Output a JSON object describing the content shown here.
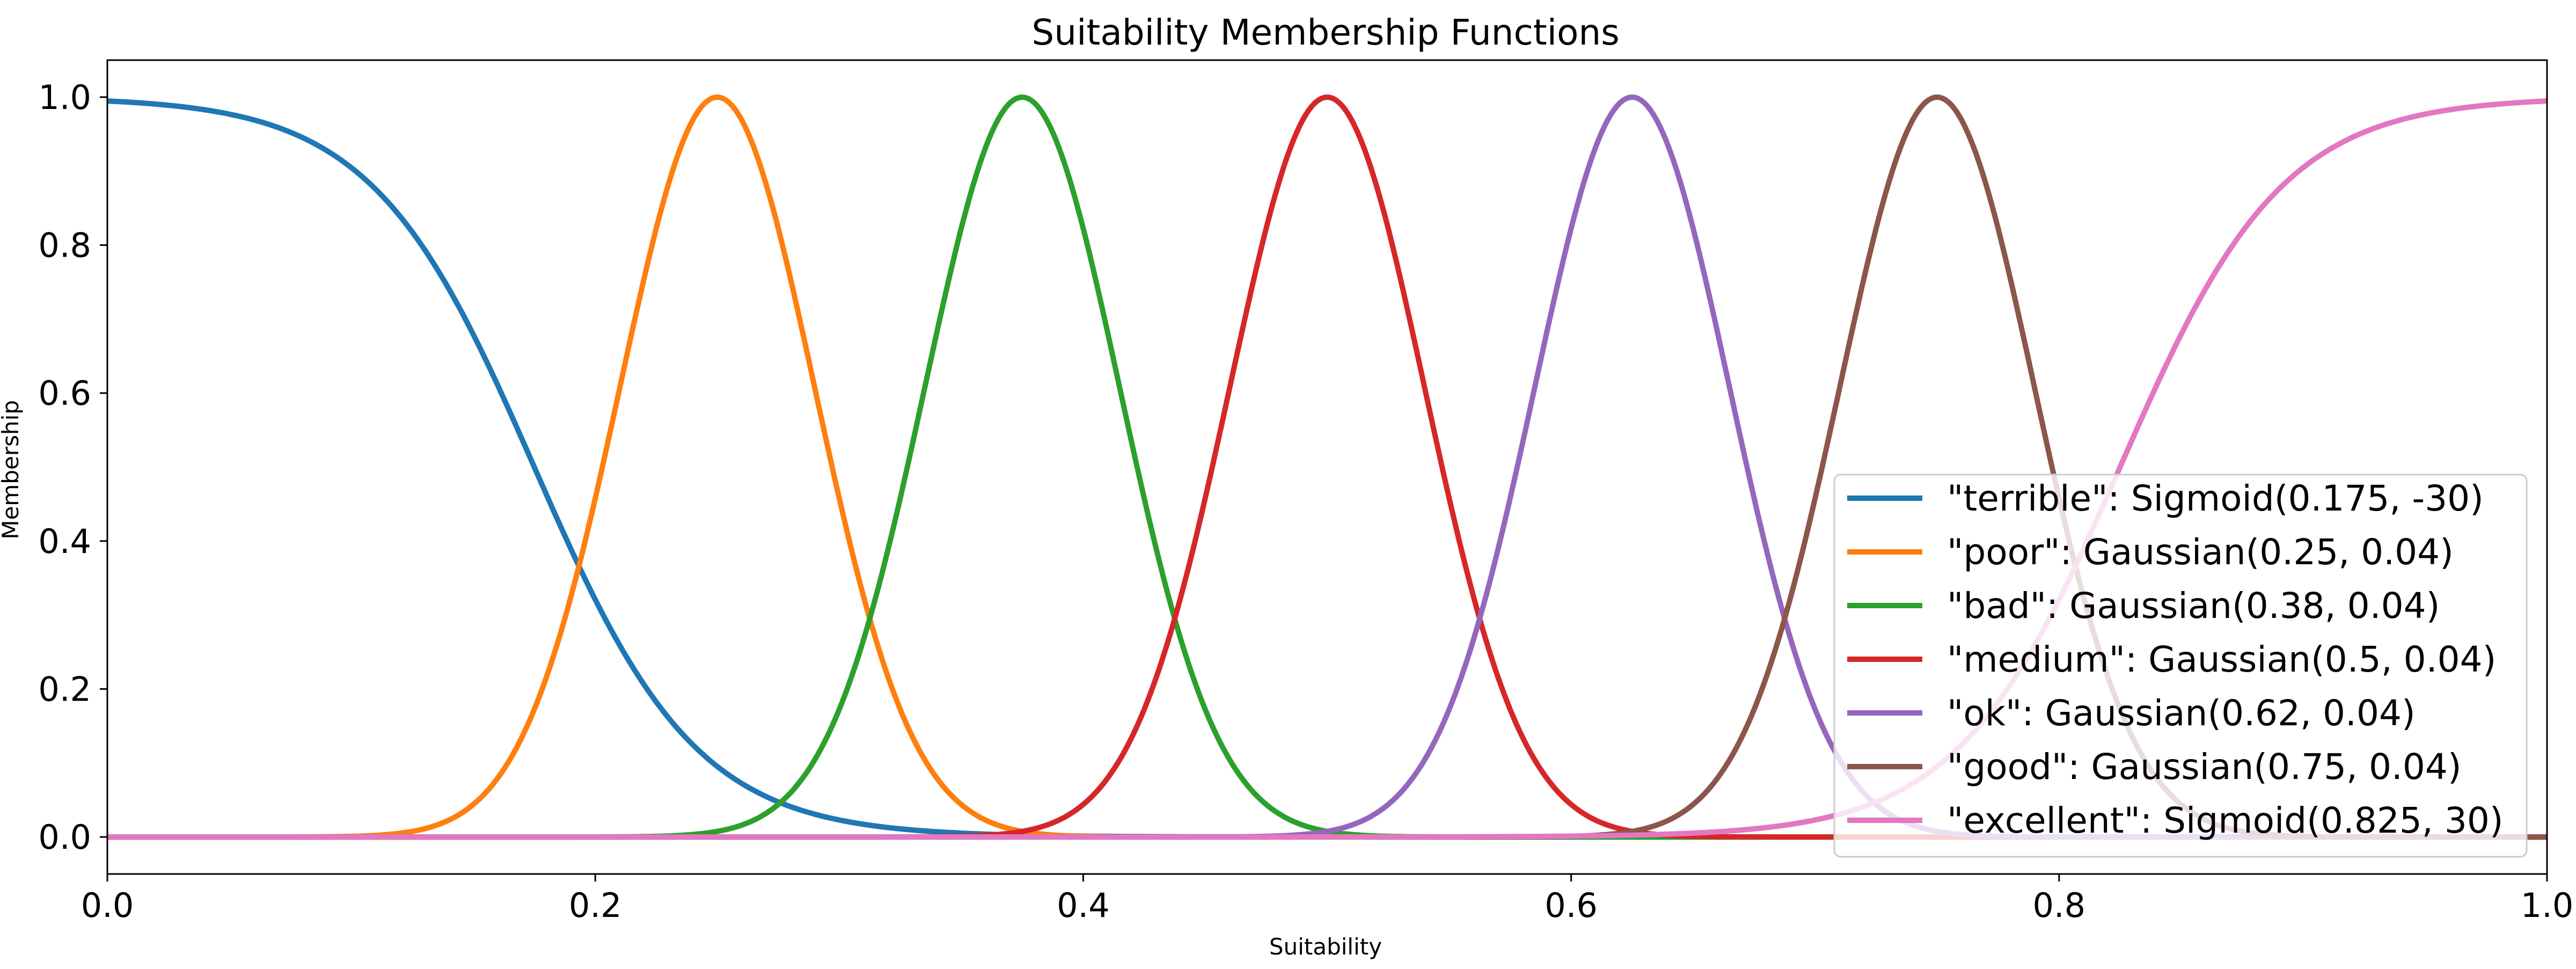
{
  "chart_data": {
    "type": "line",
    "title": "Suitability Membership Functions",
    "xlabel": "Suitability",
    "ylabel": "Membership",
    "xlim": [
      0.0,
      1.0
    ],
    "ylim": [
      -0.05,
      1.05
    ],
    "xticks": [
      0.0,
      0.2,
      0.4,
      0.6,
      0.8,
      1.0
    ],
    "xtick_labels": [
      "0.0",
      "0.2",
      "0.4",
      "0.6",
      "0.8",
      "1.0"
    ],
    "yticks": [
      0.0,
      0.2,
      0.4,
      0.6,
      0.8,
      1.0
    ],
    "ytick_labels": [
      "0.0",
      "0.2",
      "0.4",
      "0.6",
      "0.8",
      "1.0"
    ],
    "grid": false,
    "legend_position": "lower-right",
    "series": [
      {
        "name": "\"terrible\": Sigmoid(0.175, -30)",
        "kind": "sigmoid",
        "params": [
          0.175,
          -30
        ],
        "color": "#1f77b4"
      },
      {
        "name": "\"poor\": Gaussian(0.25, 0.04)",
        "kind": "gaussian",
        "params": [
          0.25,
          0.04
        ],
        "color": "#ff7f0e"
      },
      {
        "name": "\"bad\": Gaussian(0.38, 0.04)",
        "kind": "gaussian",
        "params": [
          0.375,
          0.04
        ],
        "color": "#2ca02c"
      },
      {
        "name": "\"medium\": Gaussian(0.5, 0.04)",
        "kind": "gaussian",
        "params": [
          0.5,
          0.04
        ],
        "color": "#d62728"
      },
      {
        "name": "\"ok\": Gaussian(0.62, 0.04)",
        "kind": "gaussian",
        "params": [
          0.625,
          0.04
        ],
        "color": "#9467bd"
      },
      {
        "name": "\"good\": Gaussian(0.75, 0.04)",
        "kind": "gaussian",
        "params": [
          0.75,
          0.04
        ],
        "color": "#8c564b"
      },
      {
        "name": "\"excellent\": Sigmoid(0.825, 30)",
        "kind": "sigmoid",
        "params": [
          0.825,
          30
        ],
        "color": "#e377c2"
      }
    ]
  }
}
